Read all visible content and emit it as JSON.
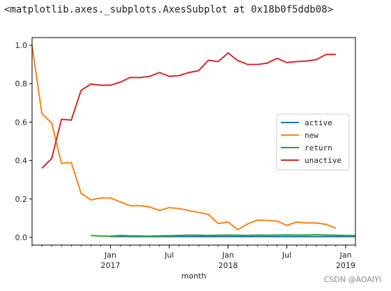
{
  "repr_text": "<matplotlib.axes._subplots.AxesSubplot at 0x18b0f5ddb08>",
  "watermark": "CSDN @AOAIYI",
  "chart_data": {
    "type": "line",
    "xlabel": "month",
    "ylabel": "",
    "ylim": [
      -0.04,
      1.04
    ],
    "yticks": [
      "0.0",
      "0.2",
      "0.4",
      "0.6",
      "0.8",
      "1.0"
    ],
    "x_start": "2016-05",
    "x_end": "2019-02",
    "xticks": [
      {
        "month": "2017-01",
        "label": "Jan",
        "sublabel": "2017"
      },
      {
        "month": "2017-07",
        "label": "Jul",
        "sublabel": ""
      },
      {
        "month": "2018-01",
        "label": "Jan",
        "sublabel": "2018"
      },
      {
        "month": "2018-07",
        "label": "Jul",
        "sublabel": ""
      },
      {
        "month": "2019-01",
        "label": "Jan",
        "sublabel": "2019"
      }
    ],
    "grid": false,
    "legend_position": "right",
    "months": [
      "2016-05",
      "2016-06",
      "2016-07",
      "2016-08",
      "2016-09",
      "2016-10",
      "2016-11",
      "2016-12",
      "2017-01",
      "2017-02",
      "2017-03",
      "2017-04",
      "2017-05",
      "2017-06",
      "2017-07",
      "2017-08",
      "2017-09",
      "2017-10",
      "2017-11",
      "2017-12",
      "2018-01",
      "2018-02",
      "2018-03",
      "2018-04",
      "2018-05",
      "2018-06",
      "2018-07",
      "2018-08",
      "2018-09",
      "2018-10",
      "2018-11",
      "2018-12",
      "2019-01",
      "2019-02"
    ],
    "series": [
      {
        "name": "active",
        "color": "#1f77b4",
        "values": [
          null,
          null,
          null,
          null,
          null,
          null,
          null,
          null,
          0.004,
          0.005,
          0.004,
          0.004,
          0.004,
          0.004,
          0.004,
          0.004,
          0.004,
          0.004,
          0.004,
          0.004,
          0.004,
          0.004,
          0.004,
          0.004,
          0.004,
          0.004,
          0.004,
          0.004,
          0.004,
          0.004,
          0.004,
          0.004,
          0.004,
          0.004
        ]
      },
      {
        "name": "new",
        "color": "#ff7f0e",
        "values": [
          1.0,
          0.645,
          0.595,
          0.385,
          0.39,
          0.23,
          0.195,
          0.205,
          0.205,
          0.185,
          0.165,
          0.165,
          0.158,
          0.14,
          0.155,
          0.15,
          0.14,
          0.13,
          0.12,
          0.072,
          0.08,
          0.04,
          0.07,
          0.09,
          0.088,
          0.085,
          0.062,
          0.08,
          0.075,
          0.075,
          0.068,
          0.048,
          null,
          null
        ]
      },
      {
        "name": "return",
        "color": "#2ca02c",
        "values": [
          null,
          null,
          null,
          null,
          null,
          null,
          0.01,
          0.007,
          0.006,
          0.01,
          0.008,
          0.007,
          0.006,
          0.008,
          0.009,
          0.01,
          0.012,
          0.011,
          0.01,
          0.011,
          0.012,
          0.011,
          0.01,
          0.012,
          0.011,
          0.012,
          0.013,
          0.012,
          0.012,
          0.014,
          0.012,
          0.011,
          0.01,
          0.009
        ]
      },
      {
        "name": "unactive",
        "color": "#d62728",
        "values": [
          null,
          0.36,
          0.41,
          0.615,
          0.61,
          0.765,
          0.798,
          0.792,
          0.792,
          0.808,
          0.832,
          0.832,
          0.838,
          0.858,
          0.838,
          0.842,
          0.858,
          0.868,
          0.922,
          0.915,
          0.96,
          0.92,
          0.9,
          0.9,
          0.907,
          0.932,
          0.91,
          0.915,
          0.918,
          0.925,
          0.952,
          0.952,
          null,
          null
        ]
      }
    ]
  }
}
